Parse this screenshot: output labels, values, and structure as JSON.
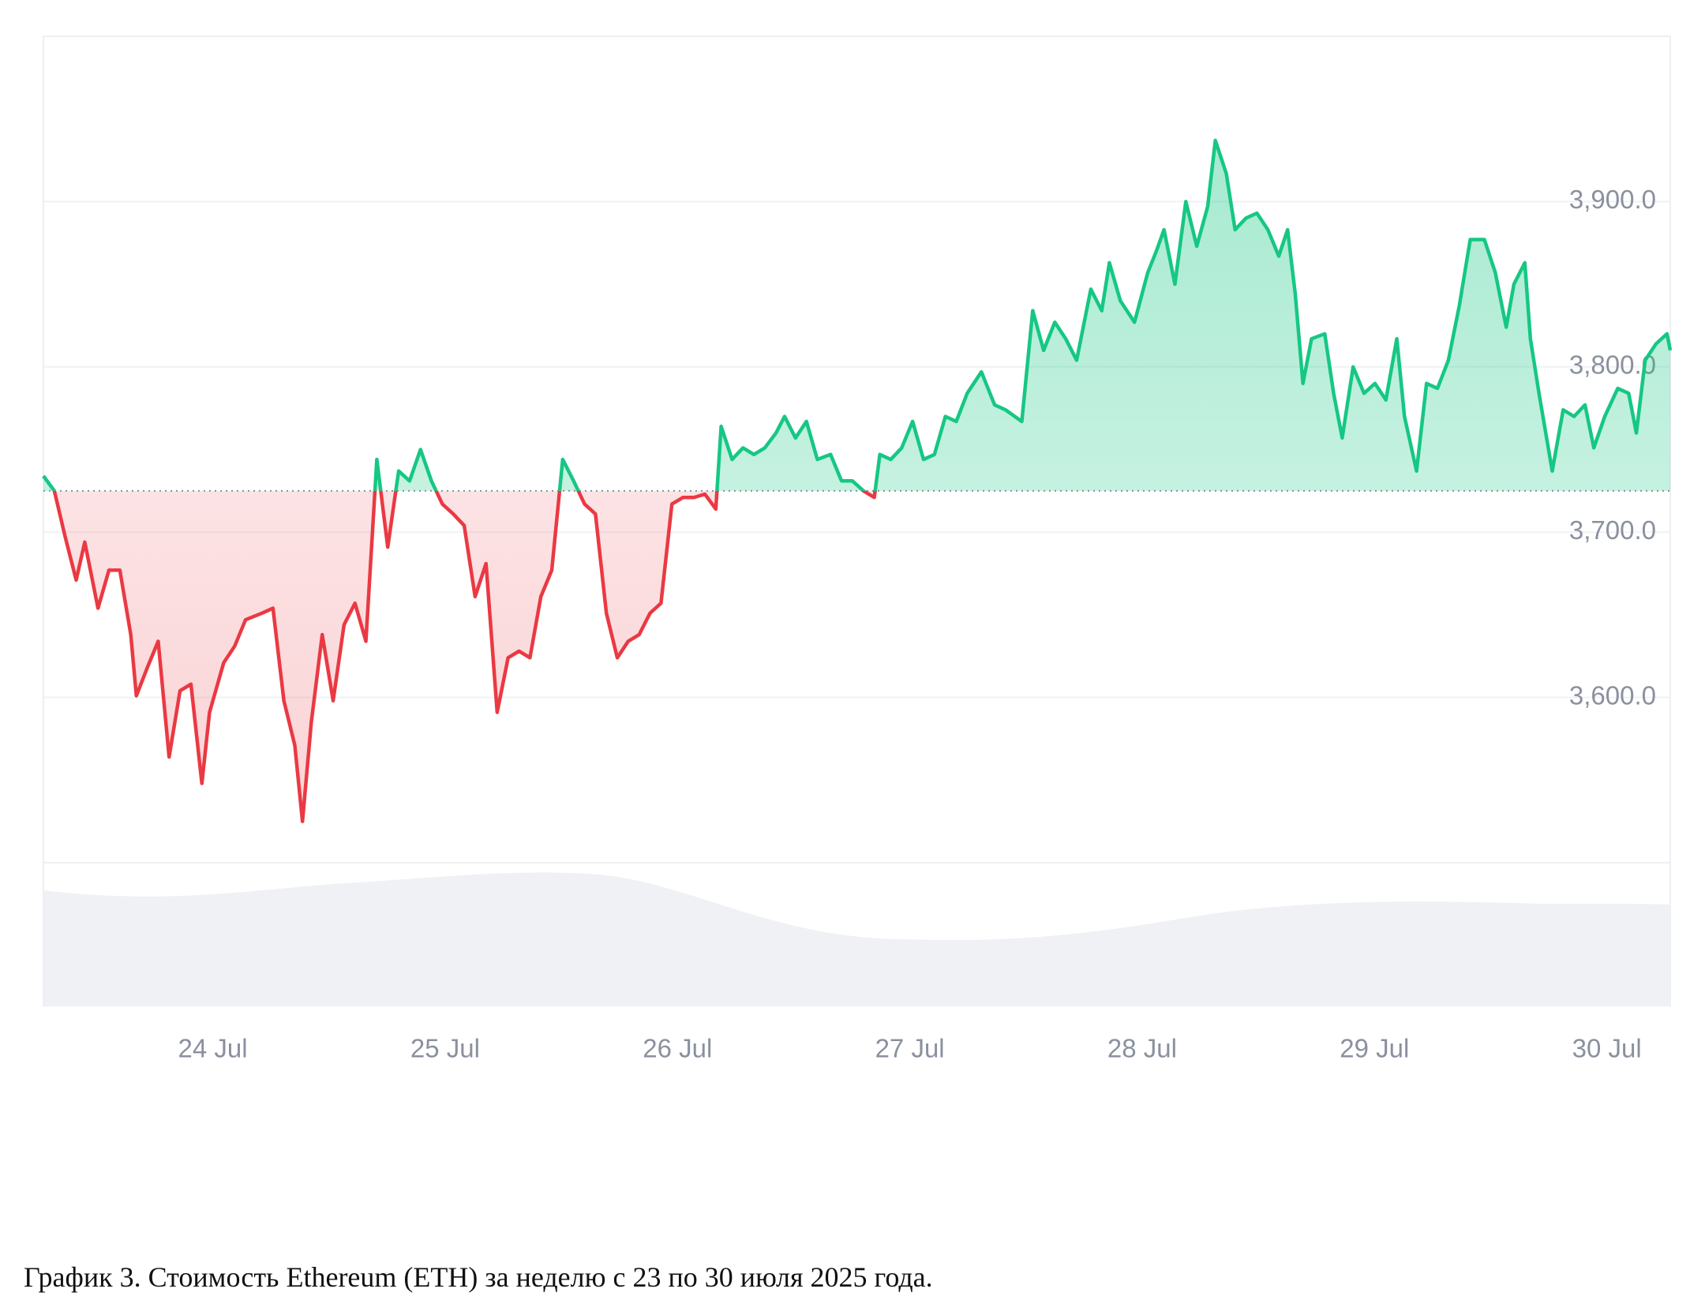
{
  "chart_data": {
    "type": "line",
    "caption": "График 3. Стоимость Ethereum (ETH) за неделю с 23 по 30 июля 2025 года.",
    "x": [
      23.271,
      23.318,
      23.365,
      23.412,
      23.449,
      23.506,
      23.553,
      23.6,
      23.647,
      23.671,
      23.718,
      23.765,
      23.812,
      23.859,
      23.906,
      23.953,
      23.986,
      24.047,
      24.094,
      24.141,
      24.212,
      24.259,
      24.306,
      24.353,
      24.386,
      24.424,
      24.471,
      24.518,
      24.565,
      24.612,
      24.659,
      24.706,
      24.753,
      24.8,
      24.847,
      24.894,
      24.941,
      24.988,
      25.035,
      25.082,
      25.129,
      25.176,
      25.224,
      25.271,
      25.318,
      25.365,
      25.412,
      25.459,
      25.506,
      25.553,
      25.6,
      25.647,
      25.694,
      25.741,
      25.788,
      25.835,
      25.882,
      25.929,
      25.976,
      26.024,
      26.071,
      26.118,
      26.165,
      26.188,
      26.235,
      26.282,
      26.329,
      26.376,
      26.424,
      26.461,
      26.508,
      26.555,
      26.602,
      26.659,
      26.706,
      26.753,
      26.8,
      26.847,
      26.871,
      26.918,
      26.965,
      27.012,
      27.059,
      27.106,
      27.153,
      27.2,
      27.247,
      27.308,
      27.365,
      27.412,
      27.482,
      27.529,
      27.576,
      27.624,
      27.671,
      27.718,
      27.779,
      27.826,
      27.859,
      27.906,
      27.967,
      28.024,
      28.061,
      28.094,
      28.141,
      28.188,
      28.235,
      28.282,
      28.315,
      28.362,
      28.4,
      28.447,
      28.494,
      28.541,
      28.588,
      28.626,
      28.659,
      28.692,
      28.729,
      28.786,
      28.824,
      28.861,
      28.908,
      28.955,
      29.002,
      29.049,
      29.096,
      29.129,
      29.181,
      29.224,
      29.271,
      29.318,
      29.365,
      29.412,
      29.473,
      29.52,
      29.567,
      29.6,
      29.647,
      29.671,
      29.708,
      29.765,
      29.812,
      29.859,
      29.906,
      29.944,
      29.991,
      30.047,
      30.094,
      30.127,
      30.165,
      30.212,
      30.259,
      30.273
    ],
    "values": [
      3734,
      3725,
      3697,
      3671,
      3694,
      3654,
      3677,
      3677,
      3638,
      3601,
      3618,
      3634,
      3564,
      3604,
      3608,
      3548,
      3591,
      3621,
      3631,
      3647,
      3651,
      3654,
      3598,
      3571,
      3525,
      3585,
      3638,
      3598,
      3644,
      3657,
      3634,
      3744,
      3691,
      3737,
      3731,
      3750,
      3731,
      3717,
      3711,
      3704,
      3661,
      3681,
      3591,
      3624,
      3628,
      3624,
      3661,
      3677,
      3744,
      3731,
      3717,
      3711,
      3651,
      3624,
      3634,
      3638,
      3651,
      3657,
      3717,
      3721,
      3721,
      3723,
      3714,
      3764,
      3744,
      3751,
      3747,
      3751,
      3760,
      3770,
      3757,
      3767,
      3744,
      3747,
      3731,
      3731,
      3725,
      3721,
      3747,
      3744,
      3751,
      3767,
      3744,
      3747,
      3770,
      3767,
      3784,
      3797,
      3777,
      3774,
      3767,
      3834,
      3810,
      3827,
      3817,
      3804,
      3847,
      3834,
      3863,
      3840,
      3827,
      3857,
      3870,
      3883,
      3850,
      3900,
      3873,
      3897,
      3937,
      3917,
      3883,
      3890,
      3893,
      3883,
      3867,
      3883,
      3844,
      3790,
      3817,
      3820,
      3784,
      3757,
      3800,
      3784,
      3790,
      3780,
      3817,
      3770,
      3737,
      3790,
      3787,
      3804,
      3837,
      3877,
      3877,
      3857,
      3824,
      3850,
      3863,
      3817,
      3784,
      3737,
      3774,
      3770,
      3777,
      3751,
      3770,
      3787,
      3784,
      3760,
      3804,
      3814,
      3820,
      3810
    ],
    "baseline": 3725,
    "color_up": "#16c784",
    "color_down": "#ea3943",
    "xlim": [
      23.271,
      30.273
    ],
    "xticks": [
      {
        "value": 24,
        "label": "24 Jul"
      },
      {
        "value": 25,
        "label": "25 Jul"
      },
      {
        "value": 26,
        "label": "26 Jul"
      },
      {
        "value": 27,
        "label": "27 Jul"
      },
      {
        "value": 28,
        "label": "28 Jul"
      },
      {
        "value": 29,
        "label": "29 Jul"
      },
      {
        "value": 30,
        "label": "30 Jul"
      }
    ],
    "ylim": [
      3500,
      4000
    ],
    "yticks": [
      {
        "value": 3600,
        "label": "3,600.0"
      },
      {
        "value": 3700,
        "label": "3,700.0"
      },
      {
        "value": 3800,
        "label": "3,800.0"
      },
      {
        "value": 3900,
        "label": "3,900.0"
      }
    ],
    "grid": true
  }
}
